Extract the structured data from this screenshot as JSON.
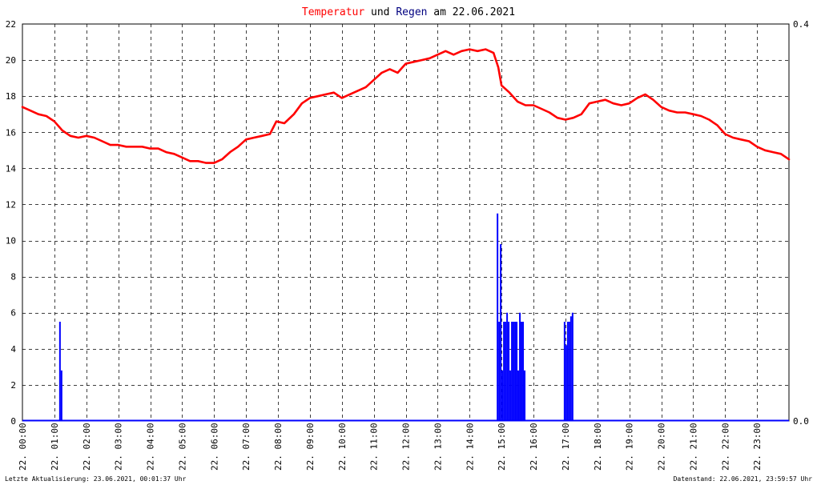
{
  "title": {
    "part1": "Temperatur",
    "part2": " und ",
    "part3": "Regen",
    "part4": " am 22.06.2021",
    "color_temperature": "#ff0000",
    "color_rain": "#000080",
    "color_text": "#000000"
  },
  "footer": {
    "left": "Letzte Aktualisierung: 23.06.2021, 00:01:37 Uhr",
    "right": "Datenstand: 22.06.2021, 23:59:57 Uhr"
  },
  "chart_data": {
    "type": "line",
    "grid": true,
    "x_range_hours": [
      0,
      24
    ],
    "y_left": {
      "min": 0,
      "max": 22,
      "ticks": [
        "0",
        "2",
        "4",
        "6",
        "8",
        "10",
        "12",
        "14",
        "16",
        "18",
        "20",
        "22"
      ]
    },
    "y_right": {
      "min": 0,
      "max": 0.4,
      "tick_labels": [
        "0.0",
        "0.4"
      ]
    },
    "x_tick_labels": [
      "22. 00:00",
      "22. 01:00",
      "22. 02:00",
      "22. 03:00",
      "22. 04:00",
      "22. 05:00",
      "22. 06:00",
      "22. 07:00",
      "22. 08:00",
      "22. 09:00",
      "22. 10:00",
      "22. 11:00",
      "22. 12:00",
      "22. 13:00",
      "22. 14:00",
      "22. 15:00",
      "22. 16:00",
      "22. 17:00",
      "22. 18:00",
      "22. 19:00",
      "22. 20:00",
      "22. 21:00",
      "22. 22:00",
      "22. 23:00"
    ],
    "series": [
      {
        "key": "temperature",
        "kind": "line",
        "color": "#ff0000",
        "points": [
          [
            0.0,
            17.4
          ],
          [
            0.25,
            17.2
          ],
          [
            0.5,
            17.0
          ],
          [
            0.75,
            16.9
          ],
          [
            1.0,
            16.6
          ],
          [
            1.25,
            16.1
          ],
          [
            1.5,
            15.8
          ],
          [
            1.75,
            15.7
          ],
          [
            2.0,
            15.8
          ],
          [
            2.25,
            15.7
          ],
          [
            2.5,
            15.5
          ],
          [
            2.75,
            15.3
          ],
          [
            3.0,
            15.3
          ],
          [
            3.25,
            15.2
          ],
          [
            3.5,
            15.2
          ],
          [
            3.75,
            15.2
          ],
          [
            4.0,
            15.1
          ],
          [
            4.25,
            15.1
          ],
          [
            4.5,
            14.9
          ],
          [
            4.75,
            14.8
          ],
          [
            5.0,
            14.6
          ],
          [
            5.25,
            14.4
          ],
          [
            5.5,
            14.4
          ],
          [
            5.75,
            14.3
          ],
          [
            6.0,
            14.3
          ],
          [
            6.25,
            14.5
          ],
          [
            6.5,
            14.9
          ],
          [
            6.75,
            15.2
          ],
          [
            7.0,
            15.6
          ],
          [
            7.25,
            15.7
          ],
          [
            7.5,
            15.8
          ],
          [
            7.75,
            15.9
          ],
          [
            7.95,
            16.6
          ],
          [
            8.2,
            16.5
          ],
          [
            8.5,
            17.0
          ],
          [
            8.75,
            17.6
          ],
          [
            9.0,
            17.9
          ],
          [
            9.25,
            18.0
          ],
          [
            9.5,
            18.1
          ],
          [
            9.75,
            18.2
          ],
          [
            10.0,
            17.9
          ],
          [
            10.25,
            18.1
          ],
          [
            10.5,
            18.3
          ],
          [
            10.75,
            18.5
          ],
          [
            11.0,
            18.9
          ],
          [
            11.25,
            19.3
          ],
          [
            11.5,
            19.5
          ],
          [
            11.75,
            19.3
          ],
          [
            12.0,
            19.8
          ],
          [
            12.25,
            19.9
          ],
          [
            12.5,
            20.0
          ],
          [
            12.75,
            20.1
          ],
          [
            13.0,
            20.3
          ],
          [
            13.25,
            20.5
          ],
          [
            13.5,
            20.3
          ],
          [
            13.75,
            20.5
          ],
          [
            14.0,
            20.6
          ],
          [
            14.25,
            20.5
          ],
          [
            14.5,
            20.6
          ],
          [
            14.75,
            20.4
          ],
          [
            14.9,
            19.6
          ],
          [
            15.0,
            18.6
          ],
          [
            15.25,
            18.2
          ],
          [
            15.5,
            17.7
          ],
          [
            15.75,
            17.5
          ],
          [
            16.0,
            17.5
          ],
          [
            16.25,
            17.3
          ],
          [
            16.5,
            17.1
          ],
          [
            16.75,
            16.8
          ],
          [
            17.0,
            16.7
          ],
          [
            17.25,
            16.8
          ],
          [
            17.5,
            17.0
          ],
          [
            17.75,
            17.6
          ],
          [
            18.0,
            17.7
          ],
          [
            18.25,
            17.8
          ],
          [
            18.5,
            17.6
          ],
          [
            18.75,
            17.5
          ],
          [
            19.0,
            17.6
          ],
          [
            19.25,
            17.9
          ],
          [
            19.5,
            18.1
          ],
          [
            19.75,
            17.8
          ],
          [
            20.0,
            17.4
          ],
          [
            20.25,
            17.2
          ],
          [
            20.5,
            17.1
          ],
          [
            20.75,
            17.1
          ],
          [
            21.0,
            17.0
          ],
          [
            21.25,
            16.9
          ],
          [
            21.5,
            16.7
          ],
          [
            21.75,
            16.4
          ],
          [
            22.0,
            15.9
          ],
          [
            22.25,
            15.7
          ],
          [
            22.5,
            15.6
          ],
          [
            22.75,
            15.5
          ],
          [
            23.0,
            15.2
          ],
          [
            23.25,
            15.0
          ],
          [
            23.5,
            14.9
          ],
          [
            23.75,
            14.8
          ],
          [
            24.0,
            14.5
          ]
        ]
      },
      {
        "key": "rain",
        "kind": "bar",
        "color": "#0000ff",
        "points": [
          [
            1.15,
            5.5
          ],
          [
            1.2,
            2.8
          ],
          [
            14.85,
            11.5
          ],
          [
            14.9,
            5.5
          ],
          [
            14.95,
            9.8
          ],
          [
            15.0,
            2.8
          ],
          [
            15.05,
            5.5
          ],
          [
            15.1,
            5.5
          ],
          [
            15.15,
            6.0
          ],
          [
            15.2,
            5.5
          ],
          [
            15.25,
            2.8
          ],
          [
            15.3,
            5.5
          ],
          [
            15.35,
            5.5
          ],
          [
            15.4,
            5.5
          ],
          [
            15.45,
            5.5
          ],
          [
            15.5,
            2.8
          ],
          [
            15.55,
            6.0
          ],
          [
            15.6,
            5.5
          ],
          [
            15.65,
            5.5
          ],
          [
            15.7,
            2.8
          ],
          [
            16.95,
            5.5
          ],
          [
            17.0,
            4.2
          ],
          [
            17.05,
            5.5
          ],
          [
            17.1,
            5.5
          ],
          [
            17.15,
            5.8
          ],
          [
            17.2,
            6.0
          ]
        ]
      }
    ]
  }
}
